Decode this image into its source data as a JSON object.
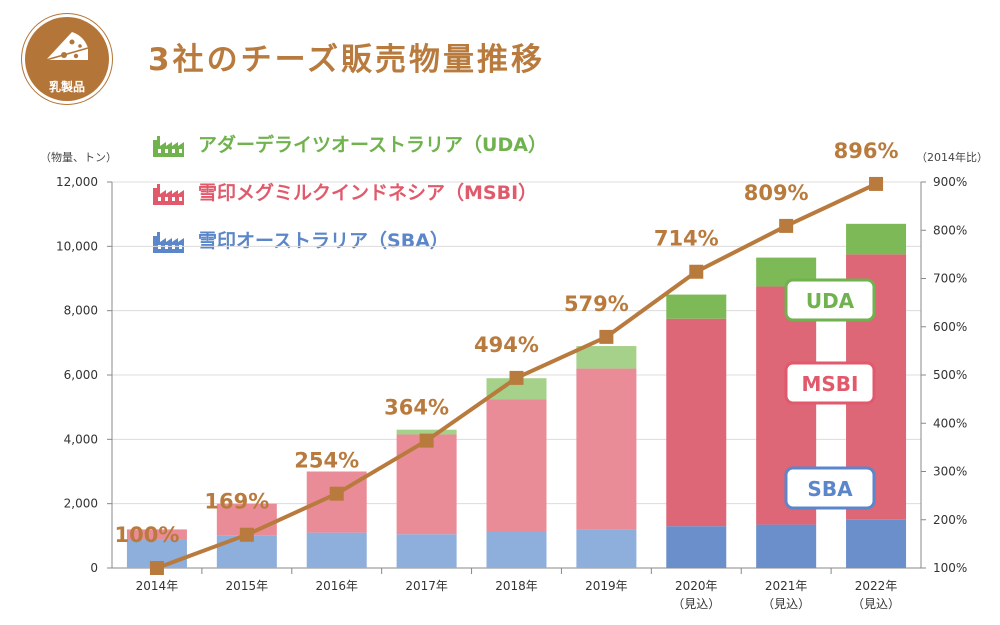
{
  "badge": {
    "label": "乳製品",
    "icon": "cheese-icon"
  },
  "title": "3社のチーズ販売物量推移",
  "legend": [
    {
      "label": "アダーデライツオーストラリア（UDA）",
      "color": "#6fb24e",
      "icon": "factory-icon"
    },
    {
      "label": "雪印メグミルクインドネシア（MSBI）",
      "color": "#e05a6c",
      "icon": "factory-icon"
    },
    {
      "label": "雪印オーストラリア（SBA）",
      "color": "#5b86c9",
      "icon": "factory-icon"
    }
  ],
  "axis_units": {
    "left": "（物量、トン）",
    "right": "（2014年比）"
  },
  "box_labels": {
    "uda": "UDA",
    "msbi": "MSBI",
    "sba": "SBA"
  },
  "colors": {
    "sba_actual": "#8eaedb",
    "msbi_actual": "#ea8c97",
    "uda_actual": "#a6d18a",
    "sba_forecast": "#6a8fcb",
    "msbi_forecast": "#dd6677",
    "uda_forecast": "#7dba57",
    "line": "#b97a3d",
    "title": "#b97a3d"
  },
  "chart_data": {
    "type": "bar",
    "stacked": true,
    "categories": [
      "2014年",
      "2015年",
      "2016年",
      "2017年",
      "2018年",
      "2019年",
      "2020年",
      "2021年",
      "2022年"
    ],
    "category_notes": [
      "",
      "",
      "",
      "",
      "",
      "",
      "（見込）",
      "（見込）",
      "（見込）"
    ],
    "forecast": [
      false,
      false,
      false,
      false,
      false,
      false,
      true,
      true,
      true
    ],
    "series": [
      {
        "name": "SBA",
        "values": [
          900,
          1000,
          1100,
          1050,
          1150,
          1200,
          1300,
          1350,
          1500
        ]
      },
      {
        "name": "MSBI",
        "values": [
          300,
          1000,
          1900,
          3100,
          4100,
          5000,
          6450,
          7400,
          8250
        ]
      },
      {
        "name": "UDA",
        "values": [
          0,
          0,
          0,
          150,
          650,
          700,
          750,
          900,
          950
        ]
      }
    ],
    "line": {
      "values": [
        100,
        169,
        254,
        364,
        494,
        579,
        714,
        809,
        896
      ],
      "labels": [
        "100%",
        "169%",
        "254%",
        "364%",
        "494%",
        "579%",
        "714%",
        "809%",
        "896%"
      ]
    },
    "y_left": {
      "ylim": [
        0,
        12000
      ],
      "ticks": [
        "0",
        "2,000",
        "4,000",
        "6,000",
        "8,000",
        "10,000",
        "12,000"
      ]
    },
    "y_right": {
      "ylim": [
        100,
        900
      ],
      "ticks": [
        "100%",
        "200%",
        "300%",
        "400%",
        "500%",
        "600%",
        "700%",
        "800%",
        "900%"
      ]
    },
    "grid": true
  }
}
